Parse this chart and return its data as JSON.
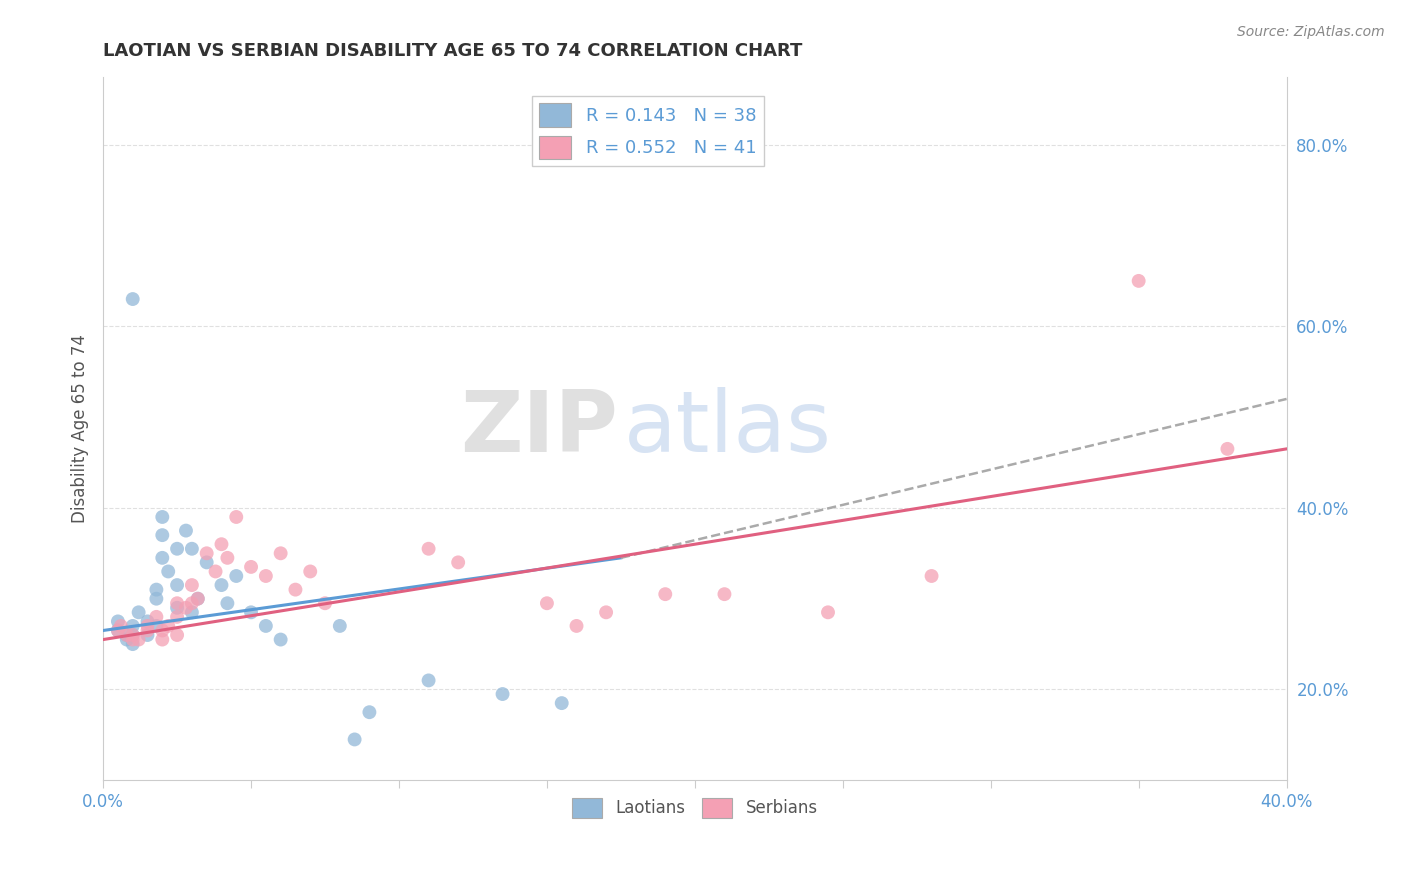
{
  "title": "LAOTIAN VS SERBIAN DISABILITY AGE 65 TO 74 CORRELATION CHART",
  "source": "Source: ZipAtlas.com",
  "ylabel": "Disability Age 65 to 74",
  "ytick_labels": [
    "20.0%",
    "40.0%",
    "60.0%",
    "80.0%"
  ],
  "ytick_values": [
    0.2,
    0.4,
    0.6,
    0.8
  ],
  "xlim": [
    0.0,
    0.4
  ],
  "ylim": [
    0.1,
    0.875
  ],
  "laotian_R": 0.143,
  "laotian_N": 38,
  "serbian_R": 0.552,
  "serbian_N": 41,
  "laotian_color": "#92b8d8",
  "serbian_color": "#f4a0b4",
  "laotian_line_color": "#5b9bd5",
  "serbian_line_color": "#e06080",
  "laotian_scatter": [
    [
      0.005,
      0.275
    ],
    [
      0.005,
      0.265
    ],
    [
      0.008,
      0.255
    ],
    [
      0.008,
      0.26
    ],
    [
      0.01,
      0.27
    ],
    [
      0.01,
      0.26
    ],
    [
      0.01,
      0.25
    ],
    [
      0.01,
      0.63
    ],
    [
      0.012,
      0.285
    ],
    [
      0.015,
      0.275
    ],
    [
      0.015,
      0.26
    ],
    [
      0.018,
      0.3
    ],
    [
      0.018,
      0.31
    ],
    [
      0.018,
      0.27
    ],
    [
      0.02,
      0.39
    ],
    [
      0.02,
      0.37
    ],
    [
      0.02,
      0.345
    ],
    [
      0.022,
      0.33
    ],
    [
      0.025,
      0.355
    ],
    [
      0.025,
      0.315
    ],
    [
      0.025,
      0.29
    ],
    [
      0.028,
      0.375
    ],
    [
      0.03,
      0.355
    ],
    [
      0.03,
      0.285
    ],
    [
      0.032,
      0.3
    ],
    [
      0.035,
      0.34
    ],
    [
      0.04,
      0.315
    ],
    [
      0.042,
      0.295
    ],
    [
      0.045,
      0.325
    ],
    [
      0.05,
      0.285
    ],
    [
      0.055,
      0.27
    ],
    [
      0.06,
      0.255
    ],
    [
      0.08,
      0.27
    ],
    [
      0.085,
      0.145
    ],
    [
      0.09,
      0.175
    ],
    [
      0.11,
      0.21
    ],
    [
      0.135,
      0.195
    ],
    [
      0.155,
      0.185
    ]
  ],
  "serbian_scatter": [
    [
      0.005,
      0.265
    ],
    [
      0.006,
      0.27
    ],
    [
      0.008,
      0.26
    ],
    [
      0.01,
      0.26
    ],
    [
      0.01,
      0.255
    ],
    [
      0.012,
      0.255
    ],
    [
      0.015,
      0.27
    ],
    [
      0.015,
      0.265
    ],
    [
      0.018,
      0.28
    ],
    [
      0.02,
      0.265
    ],
    [
      0.02,
      0.255
    ],
    [
      0.022,
      0.27
    ],
    [
      0.025,
      0.295
    ],
    [
      0.025,
      0.28
    ],
    [
      0.025,
      0.26
    ],
    [
      0.028,
      0.29
    ],
    [
      0.03,
      0.315
    ],
    [
      0.03,
      0.295
    ],
    [
      0.032,
      0.3
    ],
    [
      0.035,
      0.35
    ],
    [
      0.038,
      0.33
    ],
    [
      0.04,
      0.36
    ],
    [
      0.042,
      0.345
    ],
    [
      0.045,
      0.39
    ],
    [
      0.05,
      0.335
    ],
    [
      0.055,
      0.325
    ],
    [
      0.06,
      0.35
    ],
    [
      0.065,
      0.31
    ],
    [
      0.07,
      0.33
    ],
    [
      0.075,
      0.295
    ],
    [
      0.11,
      0.355
    ],
    [
      0.12,
      0.34
    ],
    [
      0.15,
      0.295
    ],
    [
      0.16,
      0.27
    ],
    [
      0.17,
      0.285
    ],
    [
      0.19,
      0.305
    ],
    [
      0.21,
      0.305
    ],
    [
      0.245,
      0.285
    ],
    [
      0.28,
      0.325
    ],
    [
      0.35,
      0.65
    ],
    [
      0.38,
      0.465
    ]
  ],
  "watermark_zip": "ZIP",
  "watermark_atlas": "atlas",
  "background_color": "#ffffff",
  "grid_color": "#e0e0e0"
}
